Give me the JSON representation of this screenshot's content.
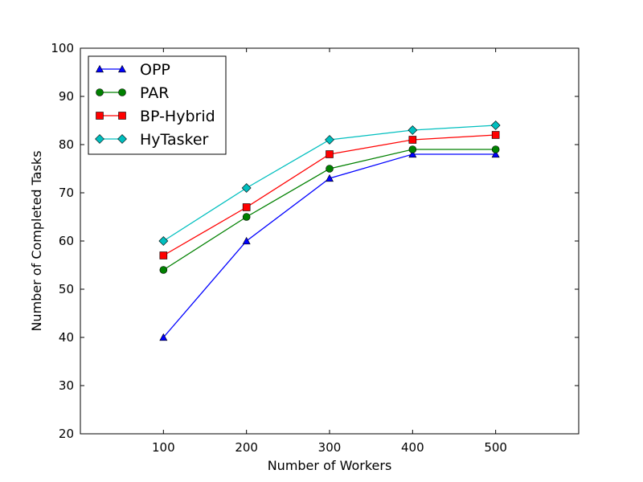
{
  "chart_data": {
    "type": "line",
    "title": "",
    "xlabel": "Number of Workers",
    "ylabel": "Number of Completed Tasks",
    "x": [
      100,
      200,
      300,
      400,
      500
    ],
    "xlim": [
      0,
      600
    ],
    "ylim": [
      20,
      100
    ],
    "xticks": [
      "100",
      "200",
      "300",
      "400",
      "500"
    ],
    "yticks": [
      "20",
      "30",
      "40",
      "50",
      "60",
      "70",
      "80",
      "90",
      "100"
    ],
    "grid": false,
    "legend_position": "top-left",
    "series": [
      {
        "name": "OPP",
        "values": [
          40,
          60,
          73,
          78,
          78
        ],
        "color": "#0000ff",
        "marker": "triangle"
      },
      {
        "name": "PAR",
        "values": [
          54,
          65,
          75,
          79,
          79
        ],
        "color": "#008000",
        "marker": "circle"
      },
      {
        "name": "BP-Hybrid",
        "values": [
          57,
          67,
          78,
          81,
          82
        ],
        "color": "#ff0000",
        "marker": "square"
      },
      {
        "name": "HyTasker",
        "values": [
          60,
          71,
          81,
          83,
          84
        ],
        "color": "#00bfbf",
        "marker": "diamond"
      }
    ]
  }
}
